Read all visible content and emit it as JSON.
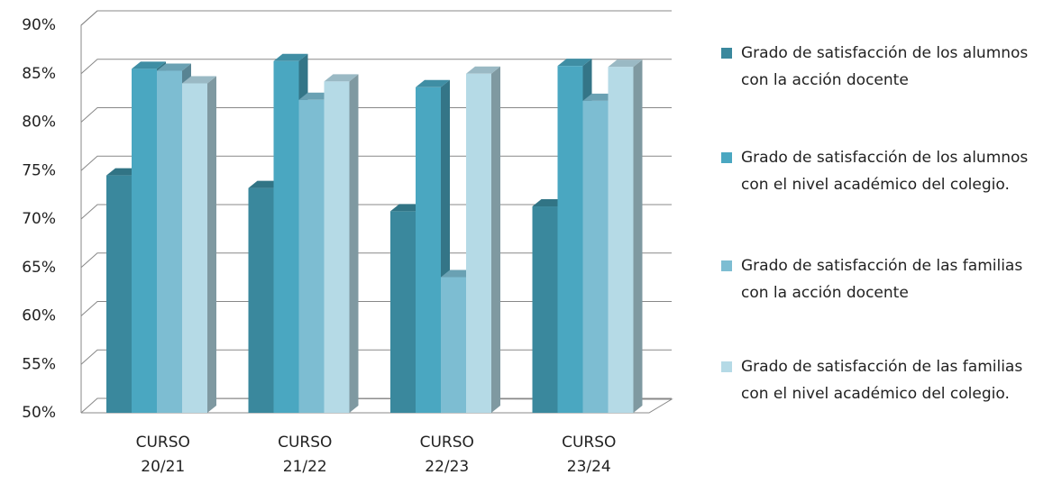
{
  "chart_data": {
    "type": "bar3d",
    "categories": [
      "CURSO 20/21",
      "CURSO 21/22",
      "CURSO 22/23",
      "CURSO 23/24"
    ],
    "series": [
      {
        "name": "Grado de satisfacción de los alumnos con la acción docente",
        "color": "#3a889d",
        "values": [
          74.5,
          73.2,
          70.8,
          71.3
        ]
      },
      {
        "name": "Grado de satisfacción de los alumnos con el nivel académico del colegio.",
        "color": "#4aa7c1",
        "values": [
          85.5,
          86.3,
          83.6,
          85.8
        ]
      },
      {
        "name": "Grado de satisfacción de las familias con la acción docente",
        "color": "#7dbdd2",
        "values": [
          85.3,
          82.3,
          64,
          82.2
        ]
      },
      {
        "name": "Grado de satisfacción de las familias con el nivel académico del colegio.",
        "color": "#b5dae6",
        "values": [
          84,
          84.2,
          85,
          85.7
        ]
      }
    ],
    "ylim": [
      50,
      90
    ],
    "yticks": [
      {
        "value": 50,
        "label": "50%"
      },
      {
        "value": 55,
        "label": "55%"
      },
      {
        "value": 60,
        "label": "60%"
      },
      {
        "value": 65,
        "label": "65%"
      },
      {
        "value": 70,
        "label": "70%"
      },
      {
        "value": 75,
        "label": "75%"
      },
      {
        "value": 80,
        "label": "80%"
      },
      {
        "value": 85,
        "label": "85%"
      },
      {
        "value": 90,
        "label": "90%"
      }
    ],
    "grid": true,
    "legend": "right"
  }
}
